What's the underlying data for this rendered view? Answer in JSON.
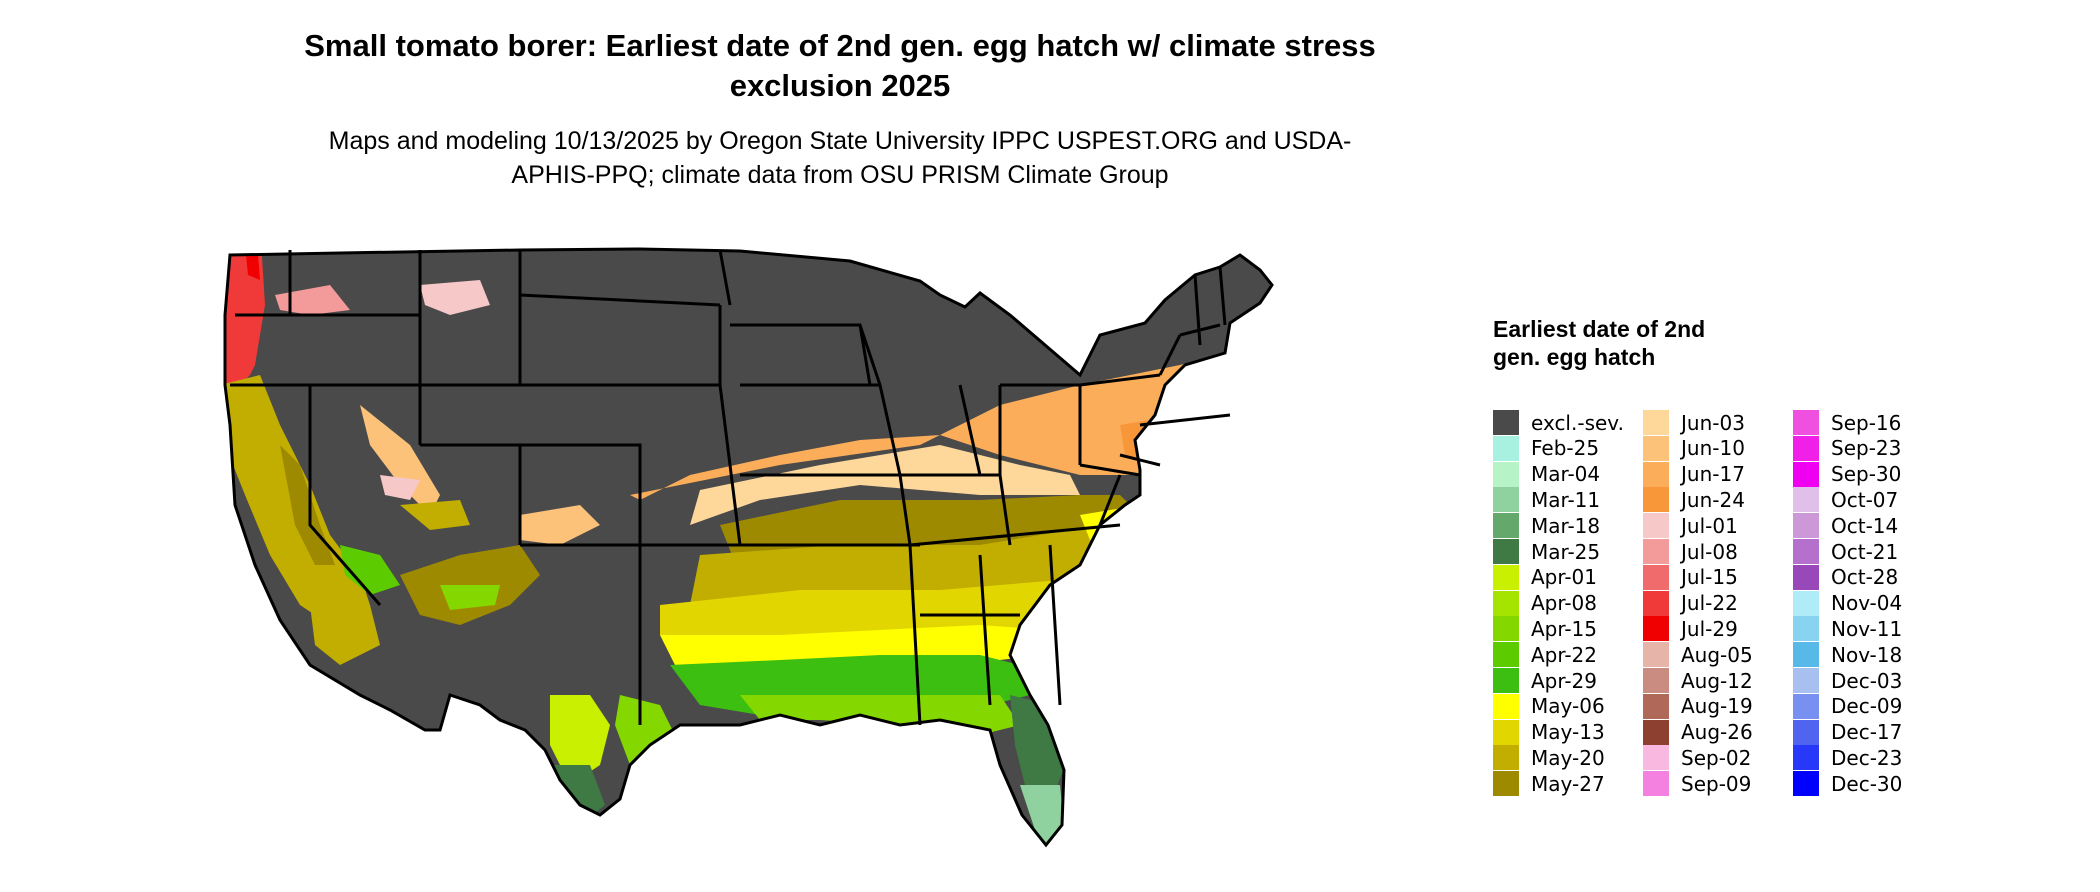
{
  "title": "Small tomato borer: Earliest date of 2nd gen. egg hatch w/ climate stress exclusion 2025",
  "subtitle": "Maps and modeling 10/13/2025 by Oregon State University IPPC USPEST.ORG and USDA-APHIS-PPQ; climate data from OSU PRISM Climate Group",
  "legend": {
    "title": "Earliest date of 2nd gen. egg hatch",
    "columns": [
      [
        {
          "label": "excl.-sev.",
          "color": "#4a4a4a"
        },
        {
          "label": "Feb-25",
          "color": "#a8f0e0"
        },
        {
          "label": "Mar-04",
          "color": "#b6f4c8"
        },
        {
          "label": "Mar-11",
          "color": "#8fd2a0"
        },
        {
          "label": "Mar-18",
          "color": "#64a86c"
        },
        {
          "label": "Mar-25",
          "color": "#3f7a44"
        },
        {
          "label": "Apr-01",
          "color": "#c8f000"
        },
        {
          "label": "Apr-08",
          "color": "#a4e400"
        },
        {
          "label": "Apr-15",
          "color": "#84d800"
        },
        {
          "label": "Apr-22",
          "color": "#5ccc00"
        },
        {
          "label": "Apr-29",
          "color": "#3cbf10"
        },
        {
          "label": "May-06",
          "color": "#ffff00"
        },
        {
          "label": "May-13",
          "color": "#e2d600"
        },
        {
          "label": "May-20",
          "color": "#c2ae00"
        },
        {
          "label": "May-27",
          "color": "#9e8a00"
        }
      ],
      [
        {
          "label": "Jun-03",
          "color": "#fdd89a"
        },
        {
          "label": "Jun-10",
          "color": "#fcc27a"
        },
        {
          "label": "Jun-17",
          "color": "#fbad5a"
        },
        {
          "label": "Jun-24",
          "color": "#f8963a"
        },
        {
          "label": "Jul-01",
          "color": "#f6c8c8"
        },
        {
          "label": "Jul-08",
          "color": "#f39a9a"
        },
        {
          "label": "Jul-15",
          "color": "#f06b6b"
        },
        {
          "label": "Jul-22",
          "color": "#f03a3a"
        },
        {
          "label": "Jul-29",
          "color": "#f00000"
        },
        {
          "label": "Aug-05",
          "color": "#e6b4a8"
        },
        {
          "label": "Aug-12",
          "color": "#ca8c80"
        },
        {
          "label": "Aug-19",
          "color": "#b06858"
        },
        {
          "label": "Aug-26",
          "color": "#8e4030"
        },
        {
          "label": "Sep-02",
          "color": "#f8b8e0"
        },
        {
          "label": "Sep-09",
          "color": "#f480e0"
        }
      ],
      [
        {
          "label": "Sep-16",
          "color": "#f050e0"
        },
        {
          "label": "Sep-23",
          "color": "#f020e8"
        },
        {
          "label": "Sep-30",
          "color": "#f000f0"
        },
        {
          "label": "Oct-07",
          "color": "#e0c0e8"
        },
        {
          "label": "Oct-14",
          "color": "#cc98d8"
        },
        {
          "label": "Oct-21",
          "color": "#b470cc"
        },
        {
          "label": "Oct-28",
          "color": "#9848b8"
        },
        {
          "label": "Nov-04",
          "color": "#b0ecf8"
        },
        {
          "label": "Nov-11",
          "color": "#88d4f0"
        },
        {
          "label": "Nov-18",
          "color": "#58b8e8"
        },
        {
          "label": "Dec-03",
          "color": "#a8c0f0"
        },
        {
          "label": "Dec-09",
          "color": "#7890f0"
        },
        {
          "label": "Dec-17",
          "color": "#5064f0"
        },
        {
          "label": "Dec-23",
          "color": "#2838f8"
        },
        {
          "label": "Dec-30",
          "color": "#0000ff"
        }
      ]
    ]
  },
  "colors": {
    "excluded": "#4a4a4a",
    "border": "#000000",
    "background": "#ffffff"
  }
}
